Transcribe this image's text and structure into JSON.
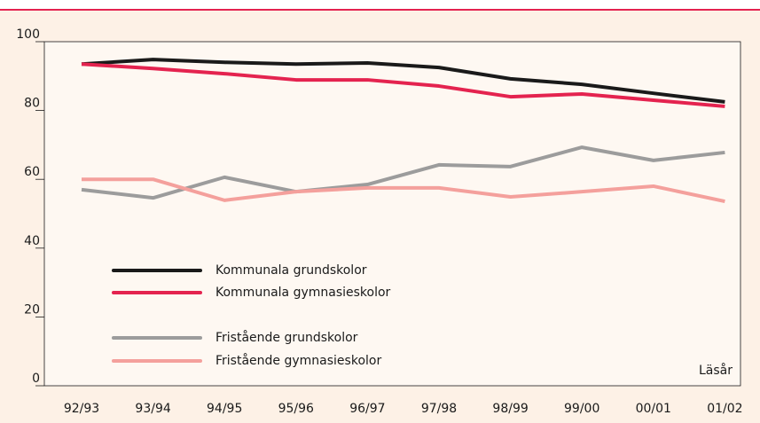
{
  "chart_data": {
    "type": "line",
    "categories": [
      "92/93",
      "93/94",
      "94/95",
      "95/96",
      "96/97",
      "97/98",
      "98/99",
      "99/00",
      "00/01",
      "01/02"
    ],
    "x_label": "Läsår",
    "ylim": [
      0,
      100
    ],
    "yticks": [
      0,
      20,
      40,
      60,
      80,
      100
    ],
    "series": [
      {
        "name": "Kommunala grundskolor",
        "color": "#1a1a1a",
        "values": [
          93.5,
          94.8,
          94,
          93.5,
          93.8,
          92.5,
          89.2,
          87.6,
          85,
          82.5
        ]
      },
      {
        "name": "Kommunala gymnasieskolor",
        "color": "#e4234f",
        "values": [
          93.5,
          92.2,
          90.7,
          88.9,
          88.9,
          87.1,
          84,
          84.8,
          83,
          81.2
        ]
      },
      {
        "name": "Fristående grundskolor",
        "color": "#9c9c9c",
        "values": [
          57,
          54.6,
          60.6,
          56.4,
          58.5,
          64.2,
          63.7,
          69.3,
          65.5,
          67.8
        ]
      },
      {
        "name": "Fristående gymnasieskolor",
        "color": "#f4a09c",
        "values": [
          60,
          60,
          53.9,
          56.4,
          57.5,
          57.5,
          54.9,
          56.4,
          58,
          53.6
        ]
      }
    ]
  }
}
